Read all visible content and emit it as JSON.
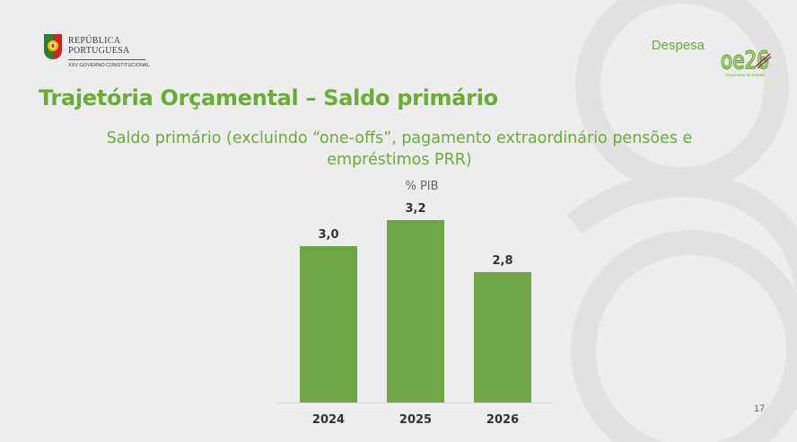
{
  "header": {
    "gov_name": "REPÚBLICA\nPORTUGUESA",
    "gov_sub": "XXV GOVERNO CONSTITUCIONAL",
    "section": "Despesa",
    "oe_logo_text": "oe26",
    "oe_logo_sub": "Orçamento do Estado"
  },
  "slide": {
    "title": "Trajetória Orçamental – Saldo primário",
    "subtitle": "Saldo primário (excluindo “one-offs”, pagamento extraordinário pensões e empréstimos PRR)",
    "page_number": "17"
  },
  "colors": {
    "accent": "#6bab3a",
    "bar": "#6ea646",
    "text_dark": "#333333"
  },
  "chart_data": {
    "type": "bar",
    "unit": "% PIB",
    "categories": [
      "2024",
      "2025",
      "2026"
    ],
    "values": [
      3.0,
      3.2,
      2.8
    ],
    "value_labels": [
      "3,0",
      "3,2",
      "2,8"
    ],
    "ylim": [
      1.8,
      3.2
    ],
    "grid": false,
    "legend": "none"
  }
}
